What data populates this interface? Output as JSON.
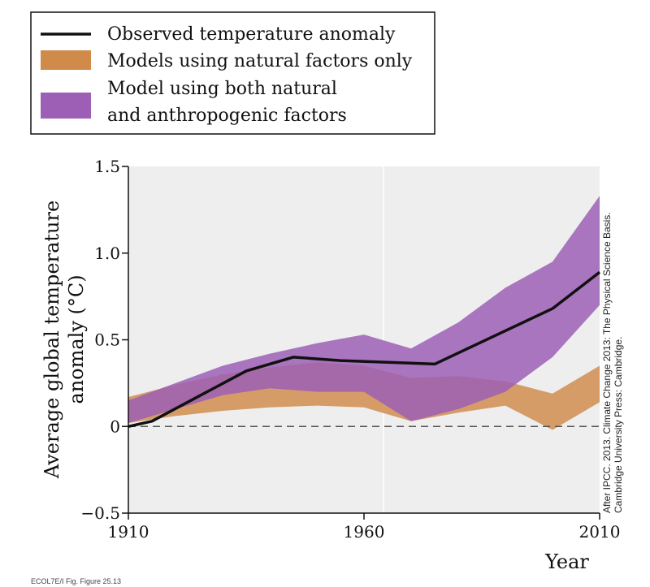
{
  "chart_data": {
    "type": "line",
    "xlabel": "Year",
    "ylabel_lines": [
      "Average global temperature",
      "anomaly (°C)"
    ],
    "xlim": [
      1910,
      2010
    ],
    "ylim": [
      -0.5,
      1.5
    ],
    "x_ticks": [
      1910,
      1960,
      2010
    ],
    "y_ticks": [
      -0.5,
      0,
      0.5,
      1.0,
      1.5
    ],
    "y_tick_labels": [
      "−0.5",
      "0",
      "0.5",
      "1.0",
      "1.5"
    ],
    "zero_line": "dashed",
    "grid": "vertical at 1960",
    "legend_position": "top-left (above plot)",
    "series": [
      {
        "name": "Observed temperature anomaly",
        "kind": "line",
        "color": "#111111",
        "x": [
          1910,
          1915,
          1935,
          1945,
          1955,
          1975,
          2000,
          2010
        ],
        "y": [
          0.0,
          0.03,
          0.32,
          0.4,
          0.38,
          0.36,
          0.68,
          0.89
        ]
      },
      {
        "name": "Models using natural factors only",
        "kind": "band",
        "color": "#D08A4A",
        "x": [
          1910,
          1920,
          1930,
          1940,
          1950,
          1960,
          1970,
          1980,
          1990,
          2000,
          2010
        ],
        "lower": [
          0.02,
          0.06,
          0.09,
          0.11,
          0.12,
          0.11,
          0.03,
          0.08,
          0.12,
          -0.02,
          0.14
        ],
        "upper": [
          0.17,
          0.24,
          0.3,
          0.34,
          0.37,
          0.35,
          0.28,
          0.29,
          0.26,
          0.19,
          0.35
        ]
      },
      {
        "name_lines": [
          "Model using both natural",
          "and anthropogenic factors"
        ],
        "kind": "band",
        "color": "#9C5FB5",
        "x": [
          1910,
          1920,
          1930,
          1940,
          1950,
          1960,
          1970,
          1980,
          1990,
          2000,
          2010
        ],
        "lower": [
          0.02,
          0.1,
          0.18,
          0.22,
          0.2,
          0.2,
          0.03,
          0.1,
          0.2,
          0.4,
          0.7
        ],
        "upper": [
          0.15,
          0.25,
          0.35,
          0.42,
          0.48,
          0.53,
          0.45,
          0.6,
          0.8,
          0.95,
          1.33
        ]
      }
    ]
  },
  "credit_lines": [
    "After IPCC. 2013. Climate Change 2013: The Physical Science Basis.",
    "Cambridge University Press: Cambridge."
  ],
  "footer_text": "ECOL7E/I Fig. Figure 25.13"
}
